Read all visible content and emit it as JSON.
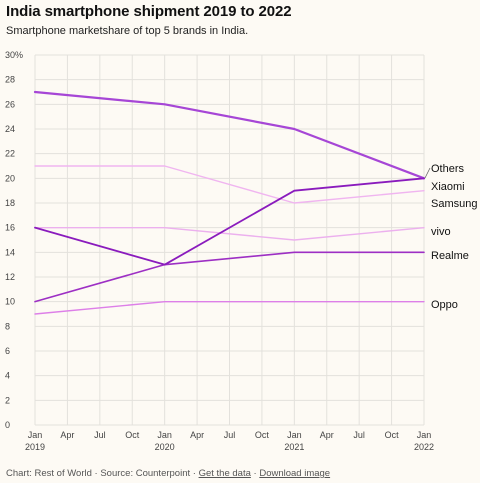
{
  "header": {
    "title": "India smartphone shipment 2019 to 2022",
    "subtitle": "Smartphone marketshare of top 5 brands in India."
  },
  "footer": {
    "credit": "Chart: Rest of World",
    "sep": " · ",
    "source": "Source: Counterpoint",
    "get_data": "Get the data",
    "download": "Download image"
  },
  "colors": {
    "Others": "#a646d6",
    "Xiaomi": "#8a1bbd",
    "Samsung": "#f0b5f0",
    "vivo": "#ecb0ee",
    "Realme": "#9d2fc4",
    "Oppo": "#dd7fe8",
    "grid": "#e3e1dc"
  },
  "chart_data": {
    "type": "line",
    "title": "India smartphone shipment 2019 to 2022",
    "subtitle": "Smartphone marketshare of top 5 brands in India.",
    "x": [
      "Jan 2019",
      "Jan 2020",
      "Jan 2021",
      "Jan 2022"
    ],
    "x_tick_labels": [
      {
        "top": "Jan",
        "bottom": "2019"
      },
      {
        "top": "Apr",
        "bottom": ""
      },
      {
        "top": "Jul",
        "bottom": ""
      },
      {
        "top": "Oct",
        "bottom": ""
      },
      {
        "top": "Jan",
        "bottom": "2020"
      },
      {
        "top": "Apr",
        "bottom": ""
      },
      {
        "top": "Jul",
        "bottom": ""
      },
      {
        "top": "Oct",
        "bottom": ""
      },
      {
        "top": "Jan",
        "bottom": "2021"
      },
      {
        "top": "Apr",
        "bottom": ""
      },
      {
        "top": "Jul",
        "bottom": ""
      },
      {
        "top": "Oct",
        "bottom": ""
      },
      {
        "top": "Jan",
        "bottom": "2022"
      }
    ],
    "y_ticks": [
      "0",
      "2",
      "4",
      "6",
      "8",
      "10",
      "12",
      "14",
      "16",
      "18",
      "20",
      "22",
      "24",
      "26",
      "28",
      "30%"
    ],
    "ylim": [
      0,
      30
    ],
    "grid": true,
    "legend": "inline labels at right end of lines",
    "series": [
      {
        "name": "Others",
        "values": [
          27,
          26,
          24,
          20
        ]
      },
      {
        "name": "Xiaomi",
        "values": [
          16,
          13,
          19,
          20
        ]
      },
      {
        "name": "Samsung",
        "values": [
          21,
          21,
          18,
          19
        ]
      },
      {
        "name": "vivo",
        "values": [
          16,
          16,
          15,
          16
        ]
      },
      {
        "name": "Realme",
        "values": [
          10,
          13,
          14,
          14
        ]
      },
      {
        "name": "Oppo",
        "values": [
          9,
          10,
          10,
          10
        ]
      }
    ]
  }
}
